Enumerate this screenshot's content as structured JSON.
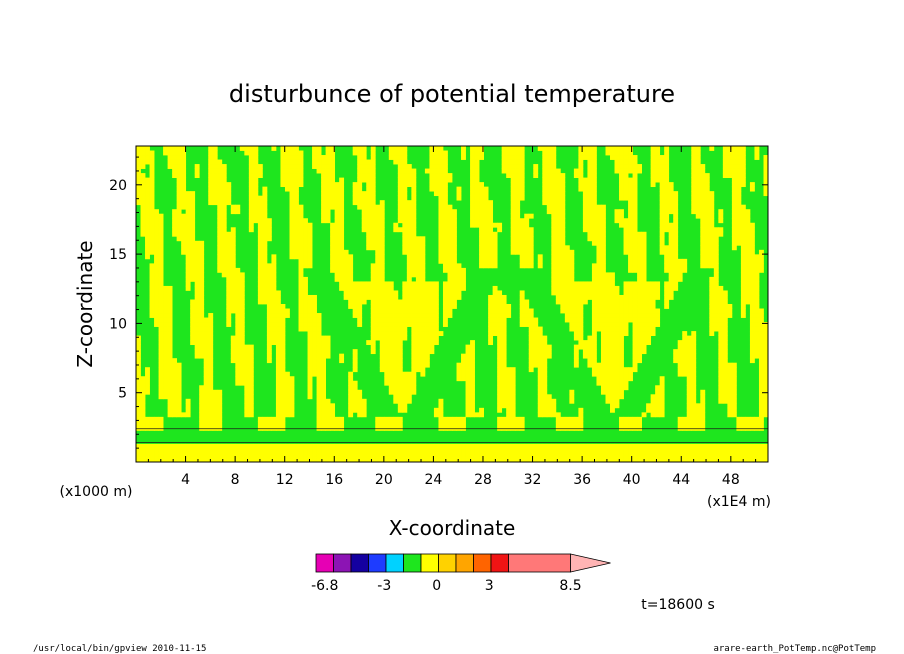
{
  "chart_data": {
    "type": "heatmap",
    "title": "disturbunce of potential temperature",
    "xlabel": "X-coordinate",
    "ylabel": "Z-coordinate",
    "x_unit": "(x1E4 m)",
    "y_unit": "(x1000 m)",
    "xlim": [
      0,
      51
    ],
    "ylim": [
      0,
      22.8
    ],
    "x_ticks": [
      "4",
      "8",
      "12",
      "16",
      "20",
      "24",
      "28",
      "32",
      "36",
      "40",
      "44",
      "48"
    ],
    "y_ticks": [
      "5",
      "10",
      "15",
      "20"
    ],
    "colorbar": {
      "labels": [
        "-6.8",
        "-3",
        "0",
        "3",
        "8.5"
      ],
      "colors": [
        "#e600b4",
        "#8c14b4",
        "#1400a0",
        "#1e3cff",
        "#00d2ff",
        "#1ee61e",
        "#ffff00",
        "#ffd200",
        "#ffa500",
        "#ff6400",
        "#f01414",
        "#ff7878"
      ]
    },
    "field_colors": {
      "positive": "#ffff00",
      "negative": "#1ee61e",
      "contour": "#1a1a1a"
    },
    "time_label": "t=18600 s"
  },
  "footer": {
    "left": "/usr/local/bin/gpview  2010-11-15",
    "right": "arare-earth_PotTemp.nc@PotTemp"
  }
}
